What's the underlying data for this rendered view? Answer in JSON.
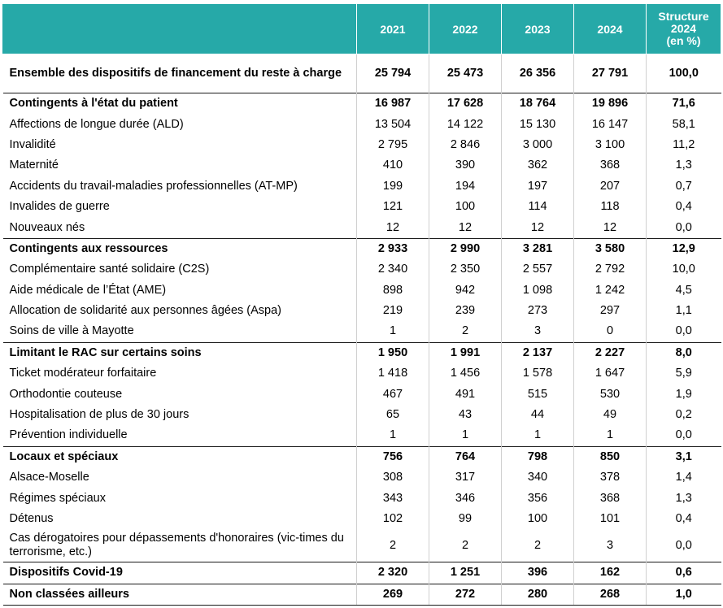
{
  "header": {
    "label": "",
    "years": [
      "2021",
      "2022",
      "2023",
      "2024"
    ],
    "structure": [
      "Structure",
      "2024",
      "(en %)"
    ]
  },
  "rows": [
    {
      "label": "Ensemble des dispositifs de financement du reste à charge",
      "values": [
        "25 794",
        "25 473",
        "26 356",
        "27 791",
        "100,0"
      ],
      "bold": true,
      "section": true,
      "total": true
    },
    {
      "label": "Contingents à l'état du patient",
      "values": [
        "16 987",
        "17 628",
        "18 764",
        "19 896",
        "71,6"
      ],
      "bold": true,
      "section": true
    },
    {
      "label": "Affections de longue durée (ALD)",
      "values": [
        "13 504",
        "14 122",
        "15 130",
        "16 147",
        "58,1"
      ]
    },
    {
      "label": "Invalidité",
      "values": [
        "2 795",
        "2 846",
        "3 000",
        "3 100",
        "11,2"
      ]
    },
    {
      "label": "Maternité",
      "values": [
        "410",
        "390",
        "362",
        "368",
        "1,3"
      ]
    },
    {
      "label": "Accidents du travail-maladies professionnelles (AT-MP)",
      "values": [
        "199",
        "194",
        "197",
        "207",
        "0,7"
      ]
    },
    {
      "label": "Invalides de guerre",
      "values": [
        "121",
        "100",
        "114",
        "118",
        "0,4"
      ]
    },
    {
      "label": "Nouveaux nés",
      "values": [
        "12",
        "12",
        "12",
        "12",
        "0,0"
      ]
    },
    {
      "label": "Contingents aux ressources",
      "values": [
        "2 933",
        "2 990",
        "3 281",
        "3 580",
        "12,9"
      ],
      "bold": true,
      "section": true
    },
    {
      "label": "Complémentaire santé solidaire (C2S)",
      "values": [
        "2 340",
        "2 350",
        "2 557",
        "2 792",
        "10,0"
      ]
    },
    {
      "label": "Aide médicale de l’État (AME)",
      "values": [
        "898",
        "942",
        "1 098",
        "1 242",
        "4,5"
      ]
    },
    {
      "label": "Allocation de solidarité aux personnes âgées (Aspa)",
      "values": [
        "219",
        "239",
        "273",
        "297",
        "1,1"
      ]
    },
    {
      "label": "Soins de ville à Mayotte",
      "values": [
        "1",
        "2",
        "3",
        "0",
        "0,0"
      ]
    },
    {
      "label": "Limitant le RAC sur certains soins",
      "values": [
        "1 950",
        "1 991",
        "2 137",
        "2 227",
        "8,0"
      ],
      "bold": true,
      "section": true
    },
    {
      "label": "Ticket modérateur forfaitaire",
      "values": [
        "1 418",
        "1 456",
        "1 578",
        "1 647",
        "5,9"
      ]
    },
    {
      "label": "Orthodontie couteuse",
      "values": [
        "467",
        "491",
        "515",
        "530",
        "1,9"
      ]
    },
    {
      "label": "Hospitalisation de plus de 30 jours",
      "values": [
        "65",
        "43",
        "44",
        "49",
        "0,2"
      ]
    },
    {
      "label": "Prévention individuelle",
      "values": [
        "1",
        "1",
        "1",
        "1",
        "0,0"
      ]
    },
    {
      "label": "Locaux et spéciaux",
      "values": [
        "756",
        "764",
        "798",
        "850",
        "3,1"
      ],
      "bold": true,
      "section": true
    },
    {
      "label": "Alsace-Moselle",
      "values": [
        "308",
        "317",
        "340",
        "378",
        "1,4"
      ]
    },
    {
      "label": "Régimes spéciaux",
      "values": [
        "343",
        "346",
        "356",
        "368",
        "1,3"
      ]
    },
    {
      "label": "Détenus",
      "values": [
        "102",
        "99",
        "100",
        "101",
        "0,4"
      ]
    },
    {
      "label": "Cas dérogatoires pour dépassements d'honoraires (vic-times du terrorisme, etc.)",
      "values": [
        "2",
        "2",
        "2",
        "3",
        "0,0"
      ],
      "tall": true
    },
    {
      "label": "Dispositifs Covid-19",
      "values": [
        "2 320",
        "1 251",
        "396",
        "162",
        "0,6"
      ],
      "bold": true,
      "section": true
    },
    {
      "label": "Non classées ailleurs",
      "values": [
        "269",
        "272",
        "280",
        "268",
        "1,0"
      ],
      "bold": true,
      "section": true,
      "last": true
    }
  ]
}
